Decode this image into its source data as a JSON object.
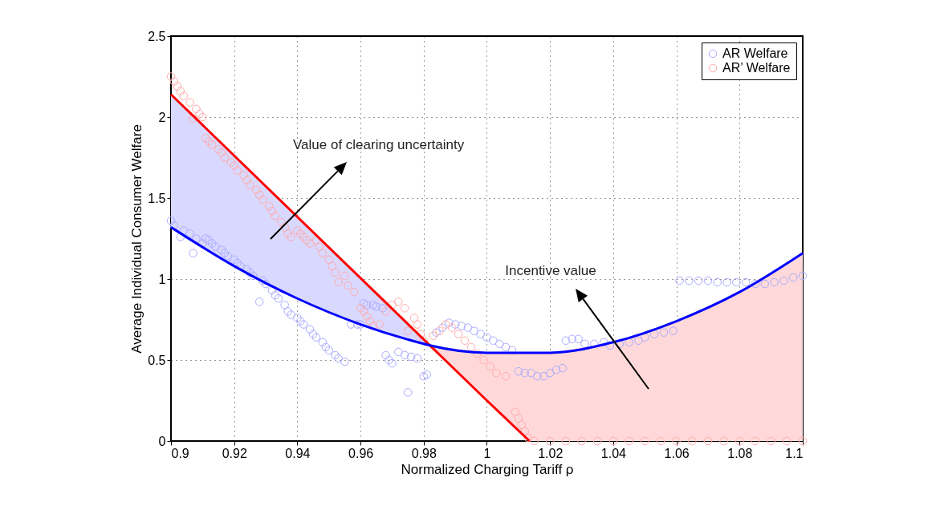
{
  "chart_data": {
    "type": "scatter",
    "xlabel": "Normalized Charging Tariff  ρ",
    "ylabel": "Average Individual Consumer Welfare",
    "xlim": [
      0.9,
      1.1
    ],
    "xticks": [
      0.9,
      0.92,
      0.94,
      0.96,
      0.98,
      1,
      1.02,
      1.04,
      1.06,
      1.08,
      1.1
    ],
    "ylim": [
      0,
      2.5
    ],
    "yticks": [
      0,
      0.5,
      1,
      1.5,
      2,
      2.5
    ],
    "grid": true,
    "legend": "top right",
    "annotations": [
      "Value of clearing uncertainty",
      "Incentive value"
    ],
    "series": [
      {
        "marker": "circle",
        "name": "AR Welfare",
        "color": "#aaaaff",
        "x": [
          0.9,
          0.901,
          0.903,
          0.904,
          0.906,
          0.907,
          0.908,
          0.91,
          0.911,
          0.912,
          0.913,
          0.914,
          0.916,
          0.917,
          0.918,
          0.92,
          0.921,
          0.922,
          0.924,
          0.925,
          0.926,
          0.928,
          0.929,
          0.93,
          0.932,
          0.933,
          0.934,
          0.936,
          0.937,
          0.938,
          0.94,
          0.941,
          0.942,
          0.944,
          0.945,
          0.946,
          0.948,
          0.949,
          0.95,
          0.952,
          0.953,
          0.955,
          0.957,
          0.959,
          0.96,
          0.961,
          0.962,
          0.964,
          0.965,
          0.967,
          0.968,
          0.969,
          0.97,
          0.972,
          0.974,
          0.975,
          0.976,
          0.978,
          0.98,
          0.981,
          0.984,
          0.986,
          0.988,
          0.99,
          0.992,
          0.994,
          0.996,
          0.998,
          1.0,
          1.002,
          1.004,
          1.006,
          1.008,
          1.01,
          1.012,
          1.014,
          1.016,
          1.018,
          1.02,
          1.022,
          1.024,
          1.025,
          1.027,
          1.029,
          1.031,
          1.034,
          1.037,
          1.039,
          1.042,
          1.045,
          1.048,
          1.05,
          1.053,
          1.056,
          1.059,
          1.061,
          1.064,
          1.067,
          1.07,
          1.073,
          1.076,
          1.079,
          1.082,
          1.085,
          1.088,
          1.091,
          1.094,
          1.097,
          1.1
        ],
        "values": [
          1.36,
          1.33,
          1.26,
          1.3,
          1.28,
          1.16,
          1.25,
          1.22,
          1.25,
          1.24,
          1.22,
          1.2,
          1.18,
          1.16,
          1.14,
          1.12,
          1.1,
          1.08,
          1.06,
          1.04,
          1.02,
          0.86,
          0.99,
          0.97,
          0.93,
          0.9,
          0.88,
          0.84,
          0.8,
          0.78,
          0.76,
          0.74,
          0.72,
          0.69,
          0.66,
          0.64,
          0.61,
          0.58,
          0.56,
          0.53,
          0.51,
          0.49,
          0.72,
          0.72,
          0.72,
          0.85,
          0.84,
          0.84,
          0.83,
          0.82,
          0.53,
          0.5,
          0.48,
          0.55,
          0.53,
          0.3,
          0.52,
          0.51,
          0.4,
          0.41,
          0.67,
          0.7,
          0.73,
          0.72,
          0.71,
          0.7,
          0.68,
          0.66,
          0.64,
          0.62,
          0.6,
          0.58,
          0.56,
          0.43,
          0.42,
          0.42,
          0.4,
          0.4,
          0.42,
          0.44,
          0.45,
          0.62,
          0.63,
          0.63,
          0.6,
          0.6,
          0.61,
          0.59,
          0.6,
          0.61,
          0.62,
          0.64,
          0.66,
          0.67,
          0.68,
          0.99,
          0.99,
          0.99,
          0.99,
          0.98,
          0.98,
          0.98,
          0.98,
          0.97,
          0.97,
          0.98,
          0.99,
          1.01,
          1.02
        ]
      },
      {
        "marker": "circle",
        "name": "AR’ Welfare",
        "color": "#ffaaaa",
        "x": [
          0.9,
          0.901,
          0.902,
          0.903,
          0.904,
          0.906,
          0.907,
          0.908,
          0.909,
          0.91,
          0.911,
          0.912,
          0.913,
          0.915,
          0.916,
          0.917,
          0.919,
          0.92,
          0.921,
          0.923,
          0.924,
          0.925,
          0.927,
          0.928,
          0.929,
          0.931,
          0.932,
          0.933,
          0.935,
          0.936,
          0.937,
          0.938,
          0.94,
          0.941,
          0.942,
          0.943,
          0.944,
          0.946,
          0.947,
          0.948,
          0.95,
          0.951,
          0.952,
          0.953,
          0.955,
          0.956,
          0.958,
          0.96,
          0.961,
          0.962,
          0.963,
          0.964,
          0.966,
          0.968,
          0.97,
          0.972,
          0.974,
          0.975,
          0.977,
          0.978,
          0.979,
          0.98,
          0.983,
          0.985,
          0.987,
          0.989,
          0.991,
          0.993,
          0.995,
          0.997,
          0.999,
          1.001,
          1.003,
          1.006,
          1.009,
          1.01,
          1.011,
          1.012,
          1.013,
          1.015,
          1.02,
          1.025,
          1.03,
          1.035,
          1.04,
          1.045,
          1.05,
          1.055,
          1.06,
          1.065,
          1.07,
          1.075,
          1.08,
          1.085,
          1.09,
          1.095,
          1.1
        ],
        "values": [
          2.25,
          2.22,
          2.19,
          2.16,
          2.13,
          2.09,
          1.99,
          2.05,
          2.02,
          2.0,
          1.87,
          1.85,
          1.83,
          1.8,
          1.78,
          1.75,
          1.72,
          1.7,
          1.67,
          1.64,
          1.61,
          1.58,
          1.55,
          1.52,
          1.49,
          1.45,
          1.42,
          1.39,
          1.35,
          1.32,
          1.28,
          1.26,
          1.3,
          1.28,
          1.26,
          1.24,
          1.22,
          1.24,
          1.2,
          1.16,
          1.12,
          1.08,
          1.04,
          0.98,
          1.02,
          0.96,
          0.92,
          0.82,
          0.8,
          0.77,
          0.74,
          0.71,
          0.72,
          0.8,
          0.84,
          0.86,
          0.82,
          0.68,
          0.76,
          0.72,
          0.66,
          0.62,
          0.65,
          0.68,
          0.72,
          0.7,
          0.66,
          0.62,
          0.58,
          0.54,
          0.5,
          0.46,
          0.42,
          0.4,
          0.18,
          0.14,
          0.1,
          0.06,
          0.02,
          0,
          0,
          0,
          0,
          0,
          0,
          0,
          0,
          0,
          0,
          0,
          0,
          0,
          0,
          0,
          0,
          0,
          0
        ]
      },
      {
        "type": "line",
        "color": "#ff0000",
        "x": [
          0.9,
          0.982,
          1.0,
          1.0135,
          1.02,
          1.04,
          1.06,
          1.08,
          1.1
        ],
        "values": [
          2.14,
          0.59,
          0.25,
          0,
          null,
          null,
          null,
          null,
          null
        ],
        "lower": [
          null,
          0.59,
          0.25,
          0,
          0,
          0,
          0,
          0,
          0
        ],
        "upper": [
          null,
          0.59,
          0.545,
          0.54,
          0.545,
          0.61,
          0.74,
          0.92,
          1.16
        ]
      },
      {
        "type": "line",
        "color": "#0000ff",
        "x": [
          0.9,
          0.92,
          0.94,
          0.96,
          0.98,
          0.982,
          1.0,
          1.02,
          1.04,
          1.06,
          1.08,
          1.1
        ],
        "values": [
          1.32,
          1.08,
          0.88,
          0.72,
          0.6,
          0.59,
          0.545,
          0.545,
          0.61,
          0.74,
          0.92,
          1.16
        ],
        "lower": [
          1.32,
          1.08,
          0.88,
          0.72,
          0.6,
          0.59,
          null,
          null,
          null,
          null,
          null,
          null
        ],
        "upper": [
          2.14,
          1.76,
          1.38,
          1.01,
          0.63,
          0.59,
          null,
          null,
          null,
          null,
          null,
          null
        ]
      }
    ]
  }
}
